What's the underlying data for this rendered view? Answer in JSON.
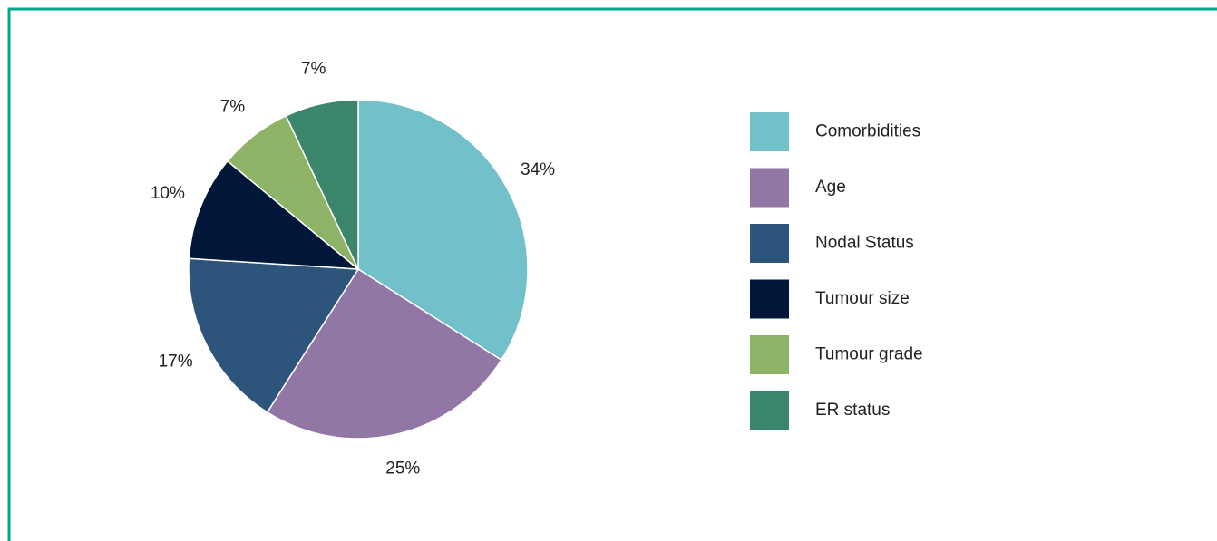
{
  "chart_data": {
    "type": "pie",
    "categories": [
      "Comorbidities",
      "Age",
      "Nodal Status",
      "Tumour size",
      "Tumour grade",
      "ER status"
    ],
    "values": [
      34,
      25,
      17,
      10,
      7,
      7
    ],
    "value_labels": [
      "34%",
      "25%",
      "17%",
      "10%",
      "7%",
      "7%"
    ],
    "colors": [
      "#72c0c9",
      "#9176a6",
      "#2d547b",
      "#00173a",
      "#8db367",
      "#3b856a"
    ],
    "legend": "right"
  }
}
